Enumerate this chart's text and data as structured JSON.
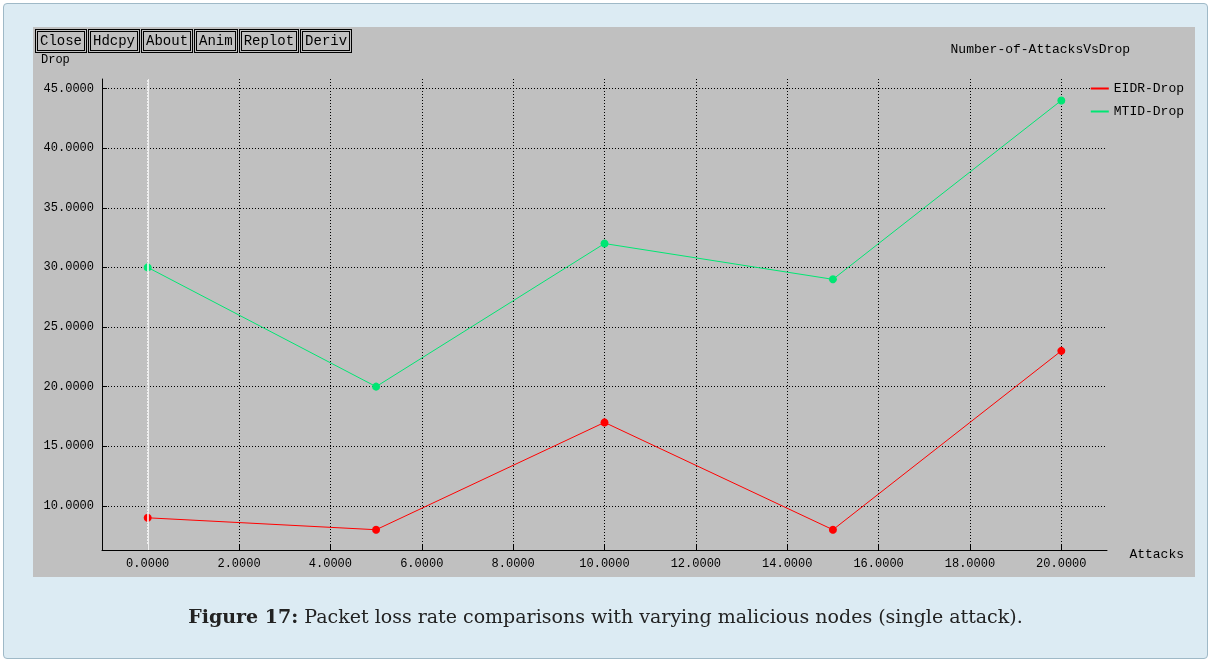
{
  "chart_data": {
    "type": "line",
    "title": "Number-of-AttacksVsDrop",
    "xlabel": "Attacks",
    "ylabel": "Drop",
    "x": [
      0,
      5,
      10,
      15,
      20
    ],
    "series": [
      {
        "name": "EIDR-Drop",
        "color": "#ff0000",
        "values": [
          9,
          8,
          17,
          8,
          23
        ]
      },
      {
        "name": "MTID-Drop",
        "color": "#00e673",
        "values": [
          30,
          20,
          32,
          29,
          44
        ]
      }
    ],
    "xlim": [
      -1,
      21
    ],
    "xticks": [
      {
        "value": 0,
        "label": "0.0000"
      },
      {
        "value": 2,
        "label": "2.0000"
      },
      {
        "value": 4,
        "label": "4.0000"
      },
      {
        "value": 6,
        "label": "6.0000"
      },
      {
        "value": 8,
        "label": "8.0000"
      },
      {
        "value": 10,
        "label": "10.0000"
      },
      {
        "value": 12,
        "label": "12.0000"
      },
      {
        "value": 14,
        "label": "14.0000"
      },
      {
        "value": 16,
        "label": "16.0000"
      },
      {
        "value": 18,
        "label": "18.0000"
      },
      {
        "value": 20,
        "label": "20.0000"
      }
    ],
    "ylim": [
      6.3,
      45.8
    ],
    "yticks": [
      {
        "value": 10,
        "label": "10.0000"
      },
      {
        "value": 15,
        "label": "15.0000"
      },
      {
        "value": 20,
        "label": "20.0000"
      },
      {
        "value": 25,
        "label": "25.0000"
      },
      {
        "value": 30,
        "label": "30.0000"
      },
      {
        "value": 35,
        "label": "35.0000"
      },
      {
        "value": 40,
        "label": "40.0000"
      },
      {
        "value": 45,
        "label": "45.0000"
      }
    ],
    "ref_lines": [
      {
        "axis": "x",
        "value": 0,
        "color": "#ffffff"
      }
    ],
    "grid": true,
    "legend": "top right",
    "marker": "circle",
    "line_style": "solid",
    "annotations": [
      "Close",
      "Hdcpy",
      "About",
      "Anim",
      "Replot",
      "Deriv",
      "Figure 17: Packet loss rate comparisons with varying malicious nodes (single attack)."
    ]
  }
}
